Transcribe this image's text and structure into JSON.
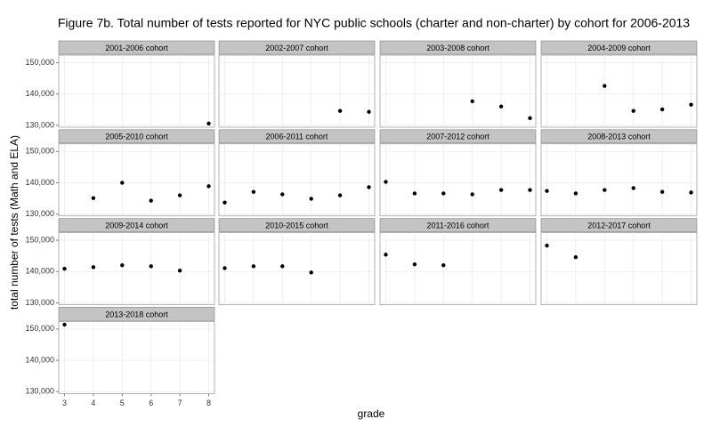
{
  "chart_data": {
    "type": "scatter",
    "title": "Figure 7b. Total number of tests reported for NYC public schools (charter and non-charter) by cohort for 2006-2013",
    "x_label": "grade",
    "y_label": "total number of tests (Math and ELA)",
    "xlim": [
      2.8,
      8.2
    ],
    "xticks": [
      3,
      4,
      5,
      6,
      7,
      8
    ],
    "ylim": [
      129400,
      152400
    ],
    "yticks": [
      {
        "value": 130000,
        "label": "130,000"
      },
      {
        "value": 140000,
        "label": "140,000"
      },
      {
        "value": 150000,
        "label": "150,000"
      }
    ],
    "grid": true,
    "facet": true,
    "series": [
      {
        "name": "2001-2006 cohort",
        "color": "#000000",
        "x": [
          8
        ],
        "values": [
          130600
        ]
      },
      {
        "name": "2002-2007 cohort",
        "color": "#000000",
        "x": [
          7,
          8
        ],
        "values": [
          134600,
          134300
        ]
      },
      {
        "name": "2003-2008 cohort",
        "color": "#000000",
        "x": [
          6,
          7,
          8
        ],
        "values": [
          137700,
          136000,
          132300
        ]
      },
      {
        "name": "2004-2009 cohort",
        "color": "#000000",
        "x": [
          5,
          6,
          7,
          8
        ],
        "values": [
          142600,
          134600,
          135100,
          136600
        ]
      },
      {
        "name": "2005-2010 cohort",
        "color": "#000000",
        "x": [
          4,
          5,
          6,
          7,
          8
        ],
        "values": [
          135100,
          140000,
          134300,
          136000,
          138900
        ]
      },
      {
        "name": "2006-2011 cohort",
        "color": "#000000",
        "x": [
          3,
          4,
          5,
          6,
          7,
          8
        ],
        "values": [
          133700,
          137100,
          136300,
          134900,
          136000,
          138600
        ]
      },
      {
        "name": "2007-2012 cohort",
        "color": "#000000",
        "x": [
          3,
          4,
          5,
          6,
          7,
          8
        ],
        "values": [
          140300,
          136600,
          136600,
          136300,
          137700,
          137700
        ]
      },
      {
        "name": "2008-2013 cohort",
        "color": "#000000",
        "x": [
          3,
          4,
          5,
          6,
          7,
          8
        ],
        "values": [
          137400,
          136600,
          137700,
          138300,
          137100,
          136900
        ]
      },
      {
        "name": "2009-2014 cohort",
        "color": "#000000",
        "x": [
          3,
          4,
          5,
          6,
          7
        ],
        "values": [
          140900,
          141400,
          142000,
          141700,
          140300
        ]
      },
      {
        "name": "2010-2015 cohort",
        "color": "#000000",
        "x": [
          3,
          4,
          5,
          6
        ],
        "values": [
          141100,
          141700,
          141700,
          139700
        ]
      },
      {
        "name": "2011-2016 cohort",
        "color": "#000000",
        "x": [
          3,
          4,
          5
        ],
        "values": [
          145400,
          142300,
          142000
        ]
      },
      {
        "name": "2012-2017 cohort",
        "color": "#000000",
        "x": [
          3,
          4
        ],
        "values": [
          148300,
          144600
        ]
      },
      {
        "name": "2013-2018 cohort",
        "color": "#000000",
        "x": [
          3
        ],
        "values": [
          151400
        ]
      }
    ]
  }
}
